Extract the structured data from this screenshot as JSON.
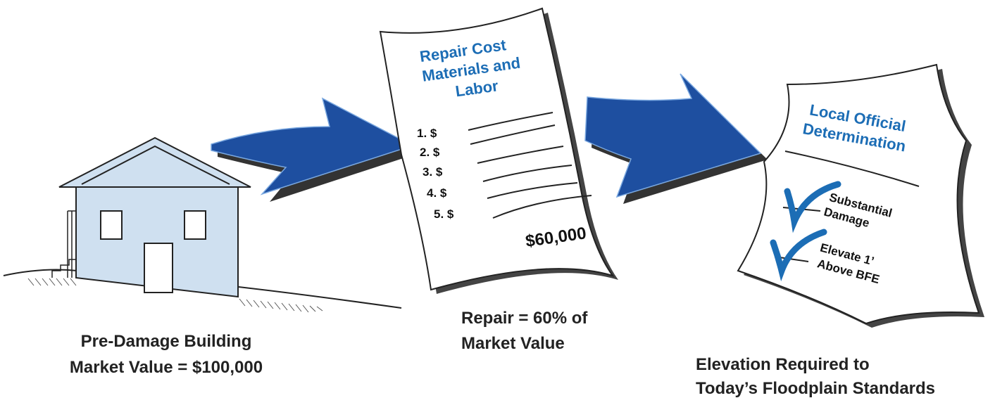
{
  "house": {
    "caption": [
      "Pre-Damage Building",
      "Market Value = $100,000"
    ]
  },
  "repair_document": {
    "title": [
      "Repair Cost",
      "Materials and",
      "Labor"
    ],
    "items": [
      "1. $",
      "2. $",
      "3. $",
      "4. $",
      "5. $"
    ],
    "total": "$60,000"
  },
  "repair_caption": [
    "Repair = 60% of",
    "Market Value"
  ],
  "determination_document": {
    "title": [
      "Local Official",
      "Determination"
    ],
    "checks": [
      [
        "Substantial",
        "Damage"
      ],
      [
        "Elevate 1’",
        "Above BFE"
      ]
    ]
  },
  "result_caption": [
    "Elevation Required to",
    "Today’s Floodplain Standards"
  ]
}
